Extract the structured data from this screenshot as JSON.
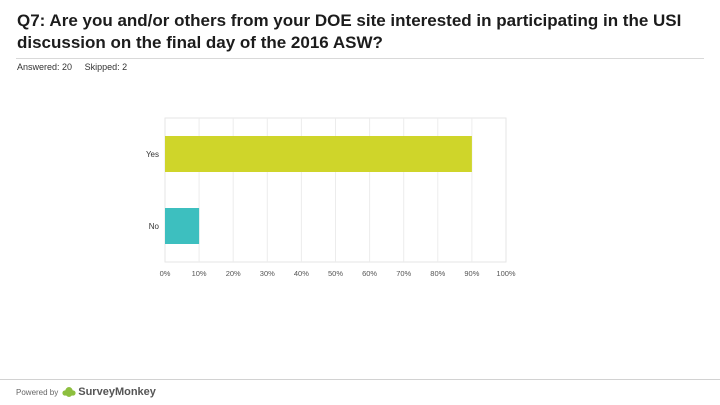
{
  "question": "Q7: Are you and/or others from your DOE site interested in participating in the USI discussion on the final day of the 2016 ASW?",
  "stats": {
    "answered": "Answered: 20",
    "skipped": "Skipped: 2"
  },
  "footer": {
    "powered_by": "Powered by",
    "brand": "SurveyMonkey"
  },
  "chart_data": {
    "type": "bar",
    "orientation": "horizontal",
    "categories": [
      "Yes",
      "No"
    ],
    "values": [
      90,
      10
    ],
    "colors": [
      "#cfd52a",
      "#3dbfbf"
    ],
    "xlim": [
      0,
      100
    ],
    "xticks": [
      "0%",
      "10%",
      "20%",
      "30%",
      "40%",
      "50%",
      "60%",
      "70%",
      "80%",
      "90%",
      "100%"
    ],
    "grid": true
  }
}
